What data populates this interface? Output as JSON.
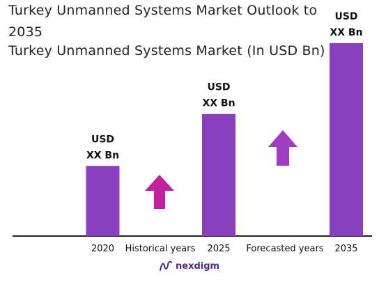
{
  "title": "Turkey Unmanned Systems Market Outlook to 2035",
  "brand": {
    "name": "nexdigm",
    "logo_icon": "nexdigm-logo-icon",
    "color": "#4a2a7a"
  },
  "colors": {
    "bar": "#8a3fbe",
    "arrow_historical": "#c41f9e",
    "arrow_forecast": "#a03cc4",
    "axis": "#222222"
  },
  "chart_data": {
    "type": "bar",
    "title": "Turkey Unmanned Systems Market (In USD Bn)",
    "categories": [
      "2020",
      "2025",
      "2035"
    ],
    "values": [
      1,
      1.74,
      2.75
    ],
    "value_labels": [
      [
        "USD",
        "XX Bn"
      ],
      [
        "USD",
        "XX Bn"
      ],
      [
        "USD",
        "XX Bn"
      ]
    ],
    "period_labels": [
      "Historical years",
      "Forecasted years"
    ],
    "xlabel": "",
    "ylabel": "",
    "ylim": [
      0,
      2.75
    ],
    "grid": false,
    "legend": "none"
  }
}
